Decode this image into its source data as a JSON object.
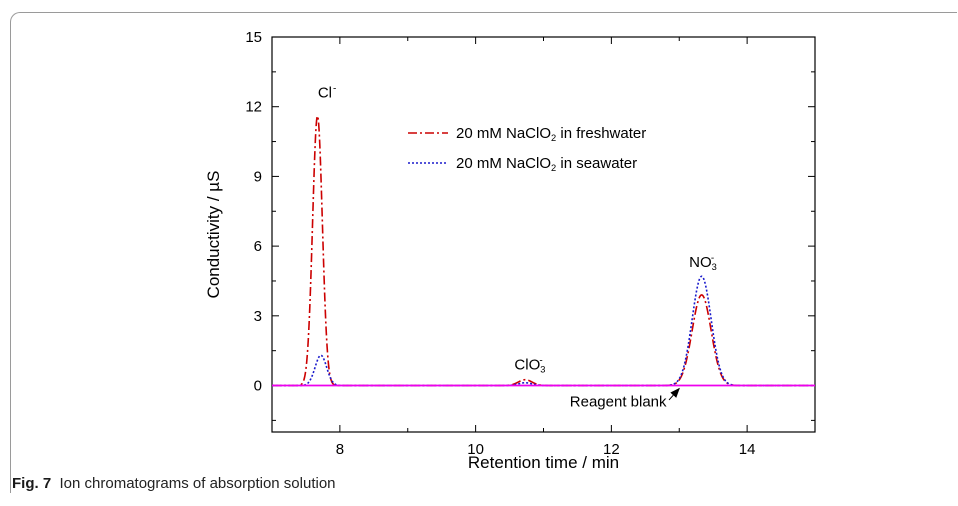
{
  "chart_data": {
    "type": "line",
    "xlabel": "Retention time / min",
    "ylabel": "Conductivity / µS",
    "xlim": [
      7,
      15
    ],
    "ylim": [
      -2,
      15
    ],
    "xticks": [
      8,
      10,
      12,
      14
    ],
    "yticks": [
      0,
      3,
      6,
      9,
      12,
      15
    ],
    "legend_position": "top-right",
    "series": [
      {
        "name": "20 mM NaClO2 in freshwater",
        "color": "#cc0000",
        "style": "dash-dot",
        "baseline": 0,
        "peaks": [
          {
            "center": 7.67,
            "height": 11.6,
            "width": 0.072
          },
          {
            "center": 10.73,
            "height": 0.25,
            "width": 0.1
          },
          {
            "center": 13.33,
            "height": 3.9,
            "width": 0.14
          }
        ]
      },
      {
        "name": "20 mM NaClO2 in seawater",
        "color": "#1a1acc",
        "style": "dotted",
        "baseline": 0,
        "peaks": [
          {
            "center": 7.72,
            "height": 1.3,
            "width": 0.085
          },
          {
            "center": 10.73,
            "height": 0.12,
            "width": 0.1
          },
          {
            "center": 13.33,
            "height": 4.7,
            "width": 0.14
          }
        ]
      },
      {
        "name": "Reagent blank",
        "color": "#ee00ee",
        "style": "solid",
        "baseline": 0,
        "peaks": []
      }
    ],
    "annotations": [
      {
        "text": "Cl",
        "sup": "-",
        "x": 7.78,
        "y": 12.4
      },
      {
        "text": "ClO",
        "sub": "3",
        "sup": "-",
        "x": 10.8,
        "y": 0.7
      },
      {
        "text": "NO",
        "sub": "3",
        "sup": "-",
        "x": 13.35,
        "y": 5.1
      },
      {
        "text": "Reagent blank",
        "x": 12.1,
        "y": -0.9,
        "arrow_to": [
          13.0,
          0.0
        ]
      }
    ],
    "legend": [
      {
        "prefix": "20 mM NaClO",
        "sub": "2",
        "suffix": " in freshwater"
      },
      {
        "prefix": "20 mM NaClO",
        "sub": "2",
        "suffix": " in seawater"
      }
    ]
  },
  "caption": {
    "label": "Fig. 7",
    "text": "Ion chromatograms of absorption solution"
  }
}
